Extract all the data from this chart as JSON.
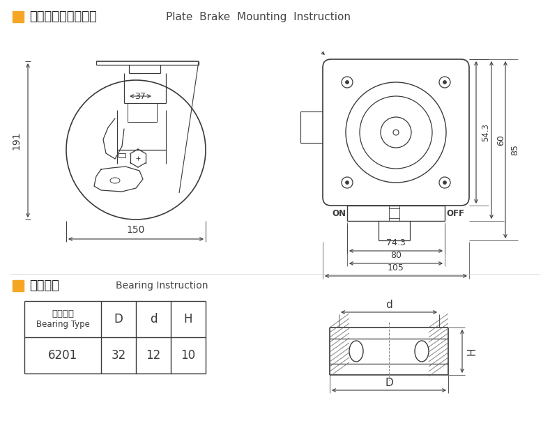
{
  "title1_cn": "平顶刹车安装尺寸图",
  "title1_en": "Plate  Brake  Mounting  Instruction",
  "title2_cn": "轴承说明",
  "title2_en": "Bearing Instruction",
  "orange_color": "#F5A623",
  "line_color": "#3a3a3a",
  "dim_color": "#3a3a3a",
  "bg_color": "#ffffff",
  "table_row": [
    "6201",
    "32",
    "12",
    "10"
  ],
  "dim_191": "191",
  "dim_150": "150",
  "dim_37": "37",
  "dim_54_3": "54.3",
  "dim_60": "60",
  "dim_85": "85",
  "dim_74_3": "74.3",
  "dim_80": "80",
  "dim_105": "105",
  "label_ON": "ON",
  "label_OFF": "OFF"
}
